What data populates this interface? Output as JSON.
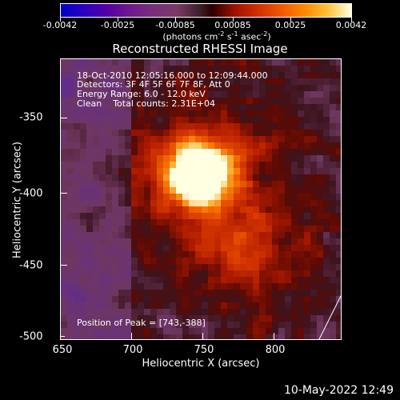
{
  "colorbar": {
    "tick_labels": [
      "-0.0042",
      "-0.0025",
      "-0.00085",
      "0.00085",
      "0.0025",
      "0.0042"
    ],
    "units_prefix": "(photons cm",
    "units_exp1": "-2",
    "units_mid": " s",
    "units_exp2": "-1",
    "units_mid2": " asec",
    "units_exp3": "-2",
    "units_suffix": ")"
  },
  "title": "Reconstructed RHESSI Image",
  "info": {
    "time_range": "18-Oct-2010 12:05:16.000 to 12:09:44.000",
    "detectors": "Detectors: 3F 4F 5F 6F 7F 8F, Att 0",
    "energy_range": "Energy Range: 6.0 - 12.0 keV",
    "clean": "Clean    Total counts: 2.31E+04",
    "peak": "Position of Peak = [743,-388]"
  },
  "axes": {
    "xlabel": "Heliocentric X (arcsec)",
    "ylabel": "Heliocentric Y (arcsec)",
    "x_ticks": [
      "650",
      "700",
      "750",
      "800"
    ],
    "y_ticks": [
      "-350",
      "-400",
      "-450",
      "-500"
    ]
  },
  "timestamp": "10-May-2022 12:49",
  "image": {
    "peak_x_arcsec": 743,
    "peak_y_arcsec": -388
  }
}
